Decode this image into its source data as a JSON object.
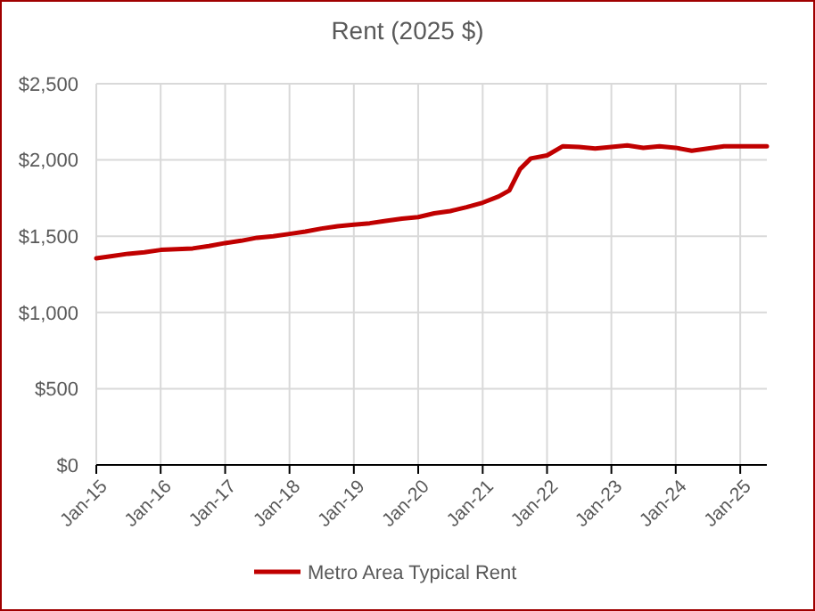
{
  "chart_data": {
    "type": "line",
    "title": "Rent (2025 $)",
    "legend": "bottom",
    "grid": true,
    "line_style": "solid",
    "x": [
      "2015-01",
      "2015-04",
      "2015-07",
      "2015-10",
      "2016-01",
      "2016-04",
      "2016-07",
      "2016-10",
      "2017-01",
      "2017-04",
      "2017-07",
      "2017-10",
      "2018-01",
      "2018-04",
      "2018-07",
      "2018-10",
      "2019-01",
      "2019-04",
      "2019-07",
      "2019-10",
      "2020-01",
      "2020-04",
      "2020-07",
      "2020-10",
      "2021-01",
      "2021-04",
      "2021-06",
      "2021-08",
      "2021-10",
      "2022-01",
      "2022-04",
      "2022-07",
      "2022-10",
      "2023-01",
      "2023-04",
      "2023-07",
      "2023-10",
      "2024-01",
      "2024-04",
      "2024-07",
      "2024-10",
      "2025-01",
      "2025-06"
    ],
    "series": [
      {
        "name": "Metro Area Typical Rent",
        "color": "#c00000",
        "values": [
          1355,
          1370,
          1385,
          1395,
          1410,
          1415,
          1420,
          1435,
          1455,
          1470,
          1490,
          1500,
          1515,
          1530,
          1550,
          1565,
          1575,
          1585,
          1600,
          1615,
          1625,
          1650,
          1665,
          1690,
          1720,
          1760,
          1800,
          1940,
          2010,
          2030,
          2090,
          2085,
          2075,
          2085,
          2095,
          2080,
          2090,
          2080,
          2060,
          2075,
          2090,
          2090,
          2090
        ]
      }
    ],
    "ylim": [
      0,
      2500
    ],
    "yticks": [
      {
        "value": 0,
        "label": "$0"
      },
      {
        "value": 500,
        "label": "$500"
      },
      {
        "value": 1000,
        "label": "$1,000"
      },
      {
        "value": 1500,
        "label": "$1,500"
      },
      {
        "value": 2000,
        "label": "$2,000"
      },
      {
        "value": 2500,
        "label": "$2,500"
      }
    ],
    "xlim": [
      "2015-01",
      "2025-06"
    ],
    "xticks": [
      {
        "value": "2015-01",
        "label": "Jan-15"
      },
      {
        "value": "2016-01",
        "label": "Jan-16"
      },
      {
        "value": "2017-01",
        "label": "Jan-17"
      },
      {
        "value": "2018-01",
        "label": "Jan-18"
      },
      {
        "value": "2019-01",
        "label": "Jan-19"
      },
      {
        "value": "2020-01",
        "label": "Jan-20"
      },
      {
        "value": "2021-01",
        "label": "Jan-21"
      },
      {
        "value": "2022-01",
        "label": "Jan-22"
      },
      {
        "value": "2023-01",
        "label": "Jan-23"
      },
      {
        "value": "2024-01",
        "label": "Jan-24"
      },
      {
        "value": "2025-01",
        "label": "Jan-25"
      }
    ]
  }
}
